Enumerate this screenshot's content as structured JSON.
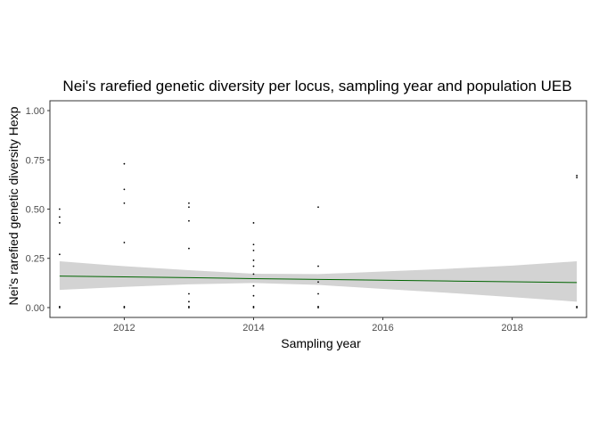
{
  "chart_data": {
    "type": "scatter",
    "title": "Nei's rarefied genetic diversity per locus, sampling year and population UEB",
    "xlabel": "Sampling year",
    "ylabel": "Nei's rarefied genetic diversity Hexp",
    "xlim": [
      2010.85,
      2019.15
    ],
    "ylim": [
      -0.05,
      1.05
    ],
    "x_ticks": [
      2012,
      2014,
      2016,
      2018
    ],
    "y_ticks": [
      0.0,
      0.25,
      0.5,
      0.75,
      1.0
    ],
    "x_tick_labels": [
      "2012",
      "2014",
      "2016",
      "2018"
    ],
    "y_tick_labels": [
      "0.00",
      "0.25",
      "0.50",
      "0.75",
      "1.00"
    ],
    "grid": false,
    "legend": "none",
    "points": [
      {
        "x": 2011,
        "y": 0.0
      },
      {
        "x": 2011,
        "y": 0.005
      },
      {
        "x": 2011,
        "y": 0.27
      },
      {
        "x": 2011,
        "y": 0.43
      },
      {
        "x": 2011,
        "y": 0.46
      },
      {
        "x": 2011,
        "y": 0.5
      },
      {
        "x": 2012,
        "y": 0.0
      },
      {
        "x": 2012,
        "y": 0.005
      },
      {
        "x": 2012,
        "y": 0.33
      },
      {
        "x": 2012,
        "y": 0.53
      },
      {
        "x": 2012,
        "y": 0.6
      },
      {
        "x": 2012,
        "y": 0.73
      },
      {
        "x": 2013,
        "y": 0.0
      },
      {
        "x": 2013,
        "y": 0.005
      },
      {
        "x": 2013,
        "y": 0.03
      },
      {
        "x": 2013,
        "y": 0.07
      },
      {
        "x": 2013,
        "y": 0.3
      },
      {
        "x": 2013,
        "y": 0.44
      },
      {
        "x": 2013,
        "y": 0.51
      },
      {
        "x": 2013,
        "y": 0.53
      },
      {
        "x": 2014,
        "y": 0.0
      },
      {
        "x": 2014,
        "y": 0.005
      },
      {
        "x": 2014,
        "y": 0.06
      },
      {
        "x": 2014,
        "y": 0.11
      },
      {
        "x": 2014,
        "y": 0.17
      },
      {
        "x": 2014,
        "y": 0.21
      },
      {
        "x": 2014,
        "y": 0.24
      },
      {
        "x": 2014,
        "y": 0.29
      },
      {
        "x": 2014,
        "y": 0.32
      },
      {
        "x": 2014,
        "y": 0.43
      },
      {
        "x": 2015,
        "y": 0.0
      },
      {
        "x": 2015,
        "y": 0.005
      },
      {
        "x": 2015,
        "y": 0.07
      },
      {
        "x": 2015,
        "y": 0.13
      },
      {
        "x": 2015,
        "y": 0.21
      },
      {
        "x": 2015,
        "y": 0.51
      },
      {
        "x": 2019,
        "y": 0.0
      },
      {
        "x": 2019,
        "y": 0.005
      },
      {
        "x": 2019,
        "y": 0.66
      },
      {
        "x": 2019,
        "y": 0.67
      }
    ],
    "trend": {
      "x": [
        2011,
        2012,
        2013,
        2014,
        2015,
        2016,
        2017,
        2018,
        2019
      ],
      "y": [
        0.16,
        0.156,
        0.152,
        0.147,
        0.143,
        0.139,
        0.135,
        0.131,
        0.127
      ],
      "lower": [
        0.09,
        0.105,
        0.118,
        0.125,
        0.115,
        0.095,
        0.075,
        0.053,
        0.03
      ],
      "upper": [
        0.235,
        0.21,
        0.19,
        0.172,
        0.17,
        0.183,
        0.197,
        0.213,
        0.235
      ]
    },
    "colors": {
      "points": "#000000",
      "trend_line": "#006400",
      "ribbon": "#d3d3d3",
      "panel_border": "#333333",
      "tick_label": "#4d4d4d"
    }
  }
}
